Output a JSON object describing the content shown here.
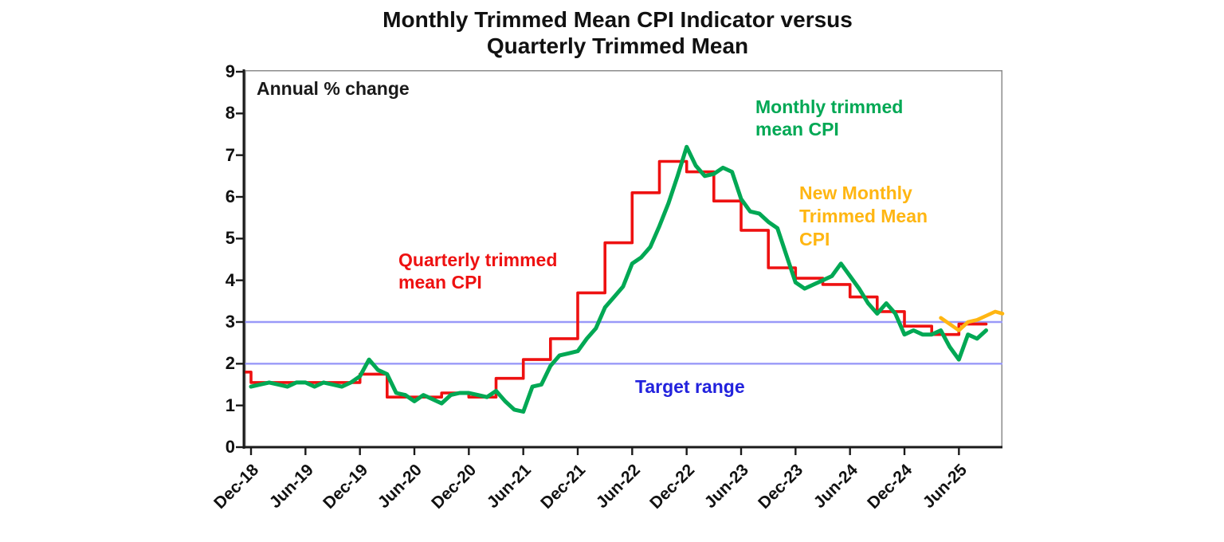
{
  "title": {
    "line1": "Monthly Trimmed Mean CPI Indicator versus",
    "line2": "Quarterly Trimmed Mean"
  },
  "annotations": {
    "axis_note": "Annual % change",
    "target": "Target range"
  },
  "legends": {
    "monthly": "Monthly trimmed\nmean CPI",
    "quarterly": "Quarterly trimmed\nmean CPI",
    "new_monthly": "New Monthly\nTrimmed Mean\nCPI"
  },
  "colors": {
    "green": "#00A854",
    "red": "#EE1111",
    "amber": "#FFB612",
    "blue_text": "#2222DD",
    "band_line": "#9999F8",
    "axis": "#1a1a1a",
    "frame": "#8c8c8c"
  },
  "chart_data": {
    "type": "line",
    "title": "Monthly Trimmed Mean CPI Indicator versus Quarterly Trimmed Mean",
    "ylabel": "Annual % change",
    "ylim": [
      0,
      9
    ],
    "yticks": [
      0,
      1,
      2,
      3,
      4,
      5,
      6,
      7,
      8,
      9
    ],
    "xticks": [
      "Dec-18",
      "Jun-19",
      "Dec-19",
      "Jun-20",
      "Dec-20",
      "Jun-21",
      "Dec-21",
      "Jun-22",
      "Dec-22",
      "Jun-23",
      "Dec-23",
      "Jun-24",
      "Dec-24",
      "Jun-25"
    ],
    "grid": false,
    "legend_position": "annotated-inline",
    "target_range": [
      2,
      3
    ],
    "series": [
      {
        "name": "Quarterly trimmed mean CPI",
        "color": "#EE1111",
        "style": "step-before",
        "stroke_width": 3.6,
        "freq": "quarterly",
        "m_start": 0,
        "m_step": 3,
        "x": [
          "Dec-18",
          "Mar-19",
          "Jun-19",
          "Sep-19",
          "Dec-19",
          "Mar-20",
          "Jun-20",
          "Sep-20",
          "Dec-20",
          "Mar-21",
          "Jun-21",
          "Sep-21",
          "Dec-21",
          "Mar-22",
          "Jun-22",
          "Sep-22",
          "Dec-22",
          "Mar-23",
          "Jun-23",
          "Sep-23",
          "Dec-23",
          "Mar-24",
          "Jun-24",
          "Sep-24",
          "Dec-24",
          "Mar-25",
          "Jun-25",
          "Sep-25"
        ],
        "values": [
          1.8,
          1.55,
          1.55,
          1.55,
          1.55,
          1.75,
          1.2,
          1.2,
          1.3,
          1.2,
          1.65,
          2.1,
          2.6,
          3.7,
          4.9,
          6.1,
          6.85,
          6.6,
          5.9,
          5.2,
          4.3,
          4.05,
          3.9,
          3.6,
          3.25,
          2.9,
          2.7,
          2.95
        ]
      },
      {
        "name": "Monthly trimmed mean CPI",
        "color": "#00A854",
        "style": "line",
        "stroke_width": 5,
        "freq": "monthly",
        "m_start": 0,
        "m_step": 1,
        "x_start": "Dec-18",
        "x_end": "Sep-25",
        "values": [
          1.45,
          1.5,
          1.55,
          1.5,
          1.45,
          1.55,
          1.55,
          1.45,
          1.55,
          1.5,
          1.45,
          1.55,
          1.7,
          2.1,
          1.85,
          1.75,
          1.3,
          1.25,
          1.1,
          1.25,
          1.15,
          1.05,
          1.25,
          1.3,
          1.3,
          1.25,
          1.2,
          1.35,
          1.1,
          0.9,
          0.85,
          1.45,
          1.5,
          1.95,
          2.2,
          2.25,
          2.3,
          2.6,
          2.85,
          3.35,
          3.6,
          3.85,
          4.4,
          4.55,
          4.8,
          5.3,
          5.85,
          6.5,
          7.2,
          6.75,
          6.5,
          6.55,
          6.7,
          6.6,
          5.95,
          5.65,
          5.6,
          5.4,
          5.25,
          4.6,
          3.95,
          3.8,
          3.9,
          4.0,
          4.1,
          4.4,
          4.1,
          3.8,
          3.45,
          3.2,
          3.45,
          3.2,
          2.7,
          2.8,
          2.7,
          2.7,
          2.8,
          2.4,
          2.1,
          2.7,
          2.6,
          2.8
        ]
      },
      {
        "name": "New Monthly Trimmed Mean CPI",
        "color": "#FFB612",
        "style": "line",
        "stroke_width": 4.6,
        "freq": "monthly",
        "m_start": 76,
        "m_step": 1,
        "x_start": "Apr-25",
        "x_end": "Nov-25",
        "values": [
          3.1,
          2.95,
          2.8,
          3.0,
          3.05,
          3.15,
          3.25,
          3.2
        ]
      }
    ]
  }
}
